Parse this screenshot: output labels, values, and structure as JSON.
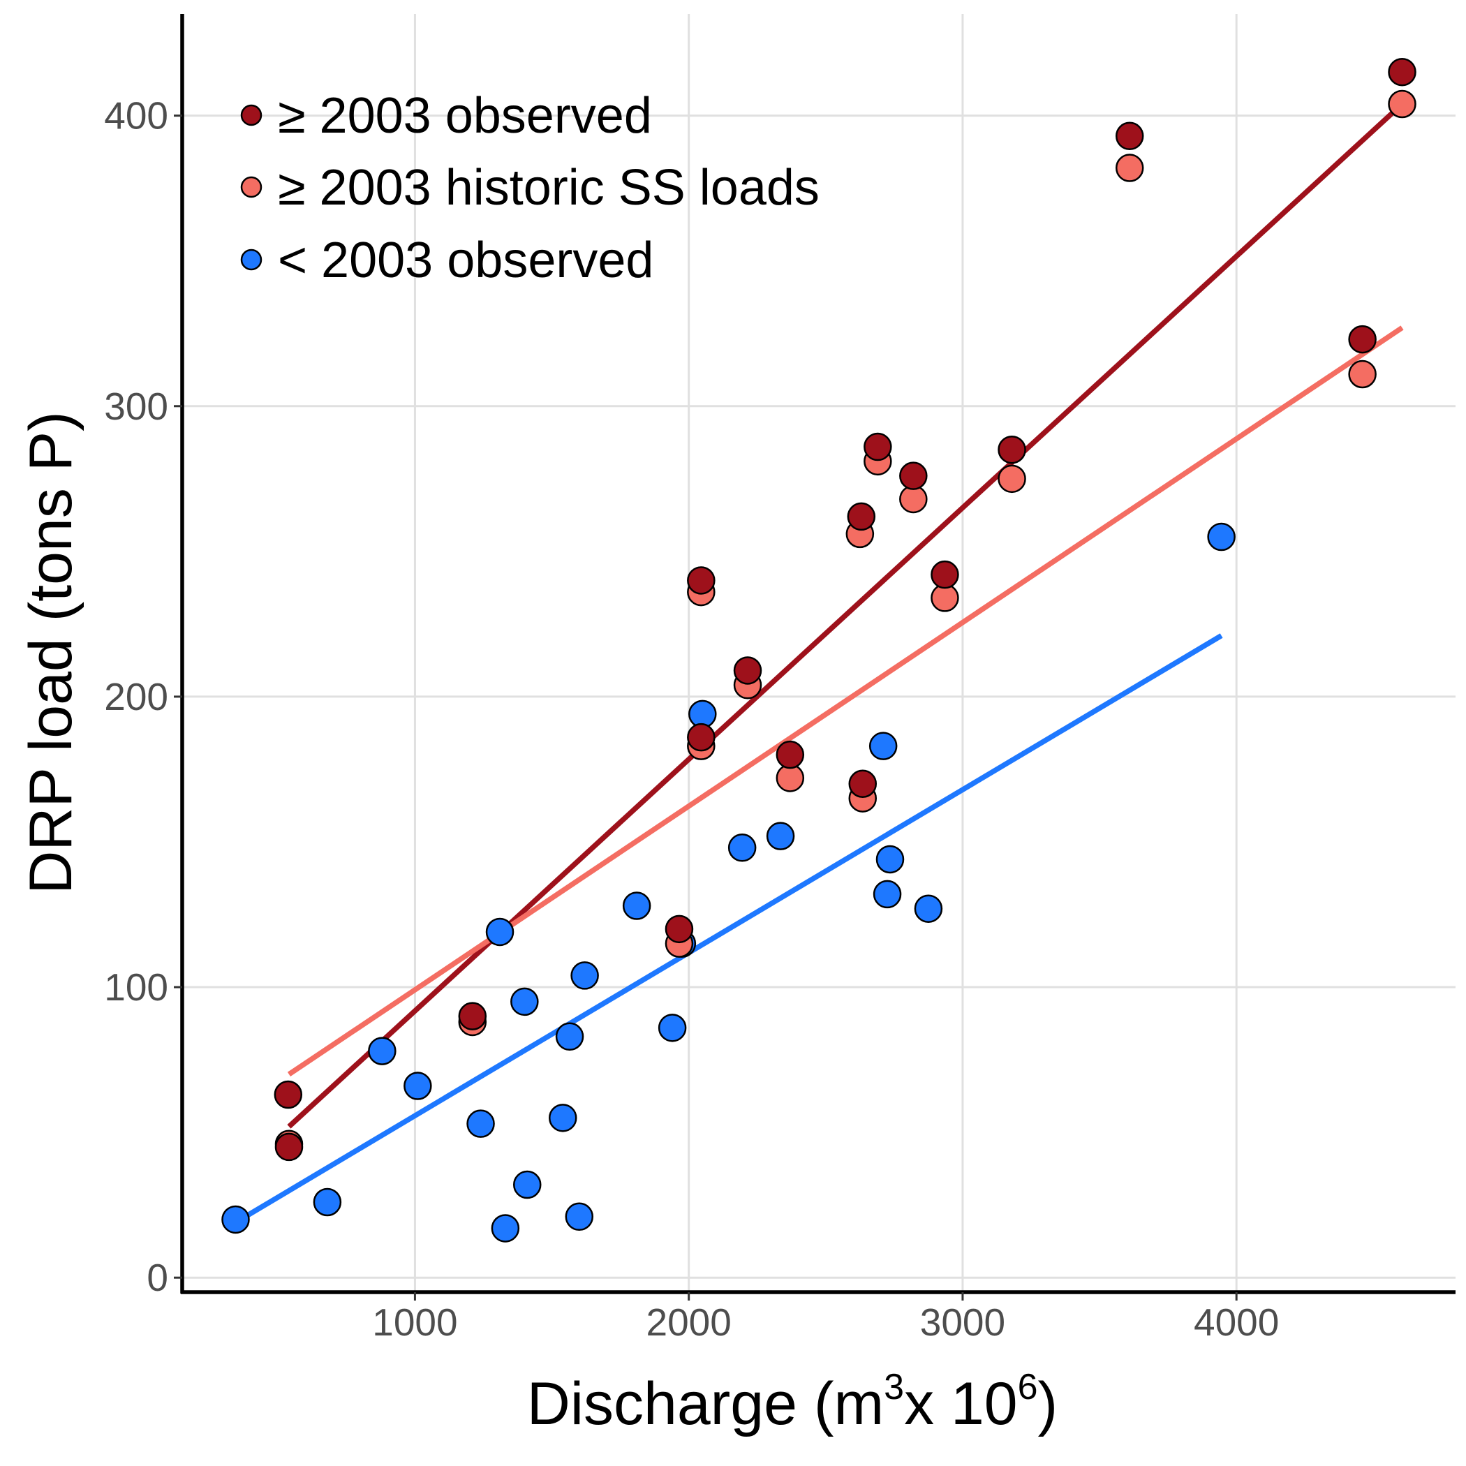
{
  "chart_data": {
    "type": "scatter",
    "xlabel": {
      "main": "Discharge (m",
      "sup1": "3",
      "mid": "x 10",
      "sup2": "6",
      "end": ")"
    },
    "ylabel": "DRP load (tons P)",
    "xlim": [
      150,
      4800
    ],
    "ylim": [
      -5,
      435
    ],
    "xticks": [
      1000,
      2000,
      3000,
      4000
    ],
    "yticks": [
      0,
      100,
      200,
      300,
      400
    ],
    "xtick_labels": [
      "1000",
      "2000",
      "3000",
      "4000"
    ],
    "ytick_labels": [
      "0",
      "100",
      "200",
      "300",
      "400"
    ],
    "grid": true,
    "legend_position": "top-left",
    "series": [
      {
        "name": "≥ 2003 observed",
        "color": "#9e111b",
        "points": [
          [
            537,
            63
          ],
          [
            540,
            45
          ],
          [
            1210,
            90
          ],
          [
            1965,
            120
          ],
          [
            2045,
            240
          ],
          [
            2045,
            186
          ],
          [
            2215,
            209
          ],
          [
            2370,
            180
          ],
          [
            2630,
            262
          ],
          [
            2635,
            170
          ],
          [
            2690,
            286
          ],
          [
            2820,
            276
          ],
          [
            2935,
            242
          ],
          [
            3180,
            285
          ],
          [
            3610,
            393
          ],
          [
            4460,
            323
          ],
          [
            4605,
            415
          ]
        ],
        "fit": {
          "x": [
            540,
            4605
          ],
          "y": [
            52,
            404
          ]
        }
      },
      {
        "name": "≥ 2003 historic SS loads",
        "color": "#f46d62",
        "points": [
          [
            540,
            46
          ],
          [
            1210,
            88
          ],
          [
            1965,
            115
          ],
          [
            2045,
            236
          ],
          [
            2045,
            183
          ],
          [
            2215,
            204
          ],
          [
            2370,
            172
          ],
          [
            2625,
            256
          ],
          [
            2635,
            165
          ],
          [
            2690,
            281
          ],
          [
            2820,
            268
          ],
          [
            2935,
            234
          ],
          [
            3180,
            275
          ],
          [
            3610,
            382
          ],
          [
            4460,
            311
          ],
          [
            4605,
            404
          ]
        ],
        "fit": {
          "x": [
            540,
            4605
          ],
          "y": [
            70,
            327
          ]
        }
      },
      {
        "name": "< 2003 observed",
        "color": "#1e78ff",
        "points": [
          [
            345,
            20
          ],
          [
            680,
            26
          ],
          [
            880,
            78
          ],
          [
            1010,
            66
          ],
          [
            1240,
            53
          ],
          [
            1310,
            119
          ],
          [
            1330,
            17
          ],
          [
            1400,
            95
          ],
          [
            1410,
            32
          ],
          [
            1540,
            55
          ],
          [
            1565,
            83
          ],
          [
            1600,
            21
          ],
          [
            1620,
            104
          ],
          [
            1810,
            128
          ],
          [
            1940,
            86
          ],
          [
            1975,
            115
          ],
          [
            2050,
            194
          ],
          [
            2195,
            148
          ],
          [
            2335,
            152
          ],
          [
            2710,
            183
          ],
          [
            2725,
            132
          ],
          [
            2735,
            144
          ],
          [
            2875,
            127
          ],
          [
            3945,
            255
          ]
        ],
        "fit": {
          "x": [
            345,
            3945
          ],
          "y": [
            19,
            221
          ]
        }
      }
    ]
  }
}
